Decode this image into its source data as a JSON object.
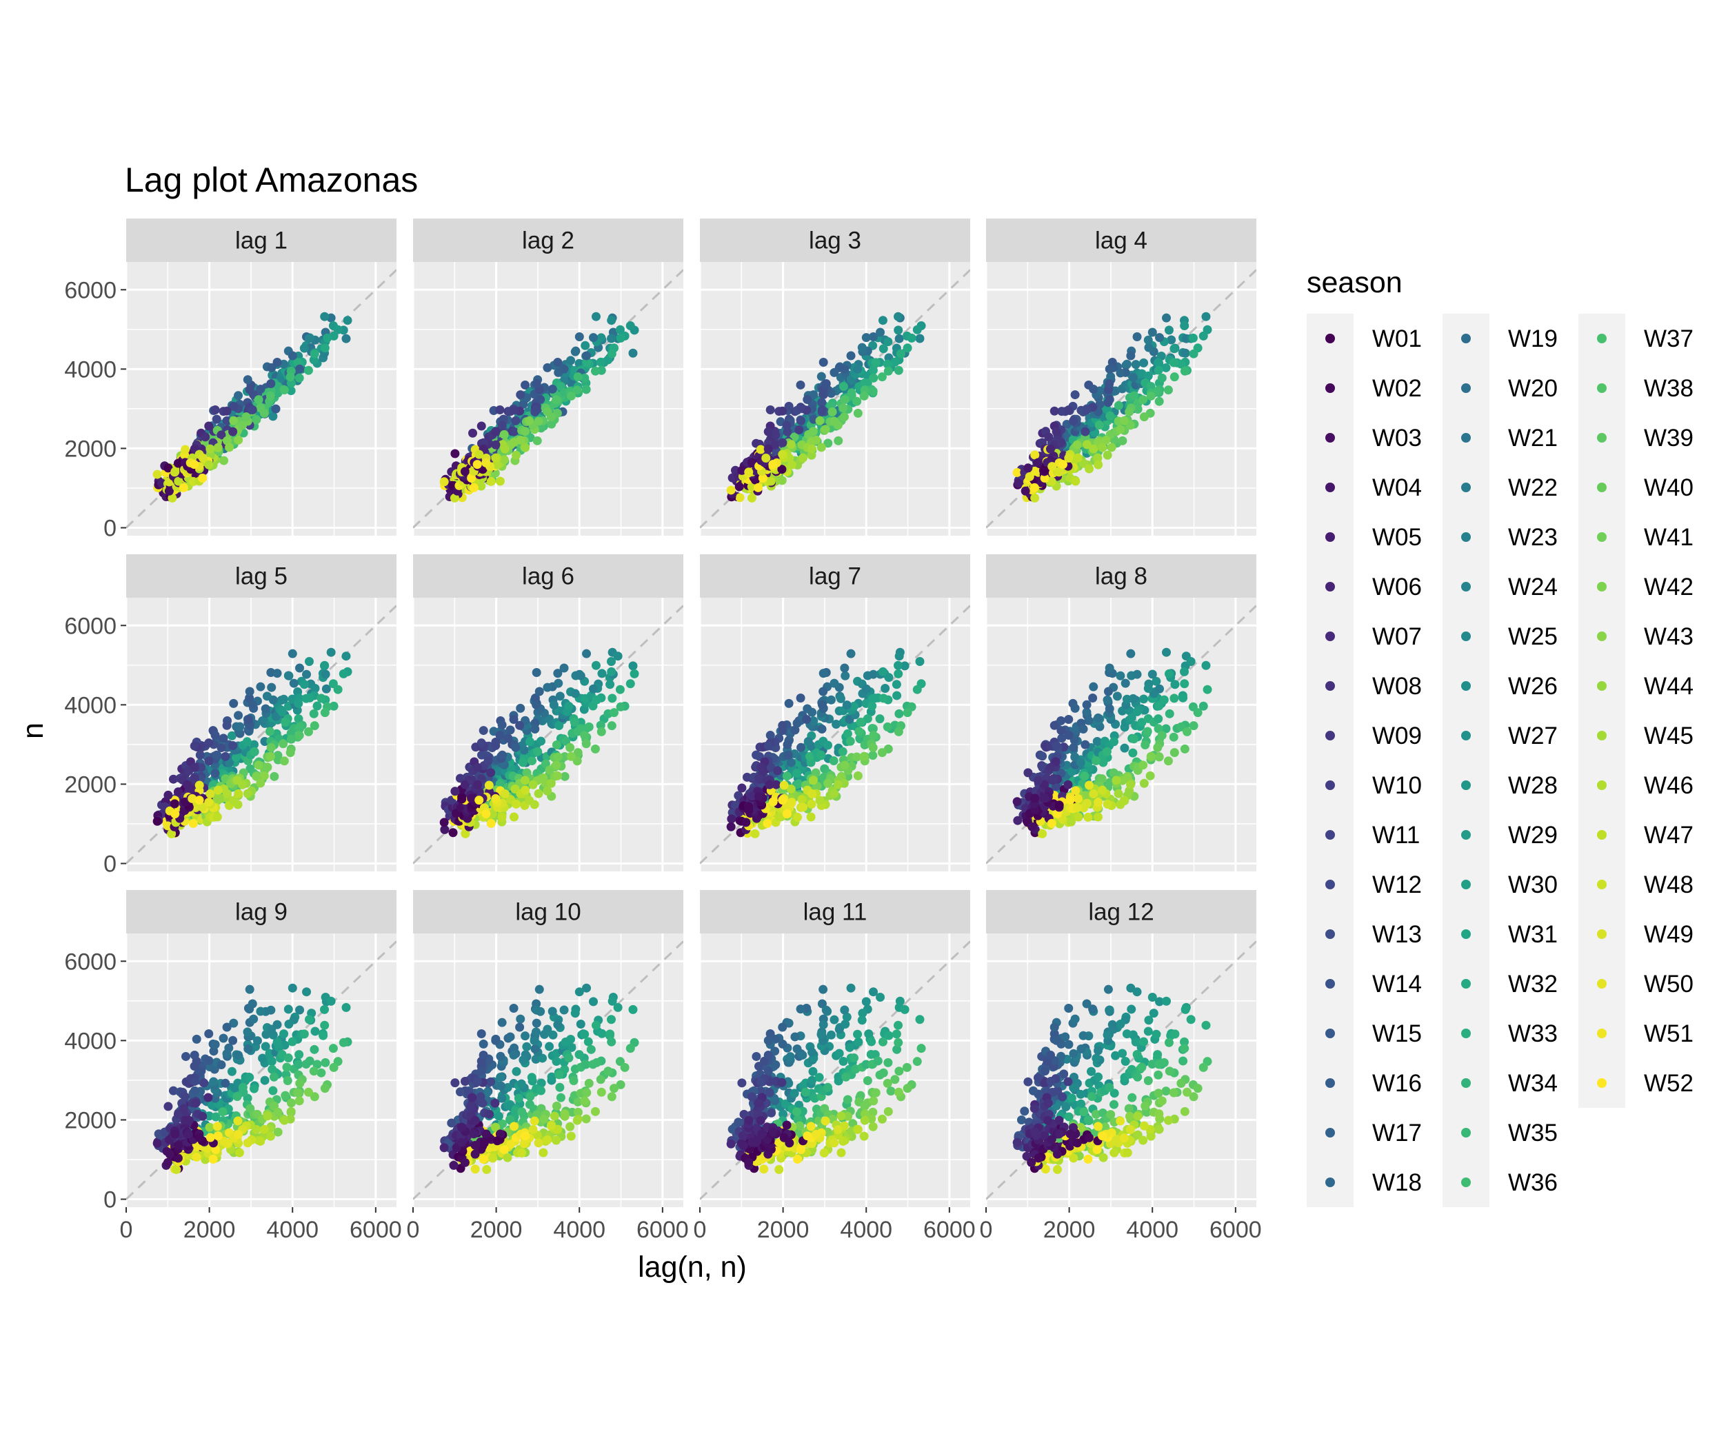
{
  "chart_data": {
    "type": "scatter",
    "title": "Lag plot Amazonas",
    "xlabel": "lag(n, n)",
    "ylabel": "n",
    "xlim": [
      0,
      6500
    ],
    "ylim": [
      -200,
      6700
    ],
    "x_ticks": [
      0,
      2000,
      4000,
      6000
    ],
    "y_ticks": [
      0,
      2000,
      4000,
      6000
    ],
    "x_tick_labels_col1": [
      "0",
      "2000",
      "4000",
      "6000"
    ],
    "x_tick_labels_mid": [
      "0",
      "2000",
      "4000",
      "6000"
    ],
    "x_tick_labels_last": [
      "0",
      "2000",
      "4000",
      "6000"
    ],
    "y_tick_labels": [
      "0",
      "2000",
      "4000",
      "6000"
    ],
    "reference_line": "y = x (dashed grey)",
    "grid": true,
    "legend_placement": "right",
    "legend": {
      "title": "season",
      "columns": 3,
      "entries": [
        "W01",
        "W02",
        "W03",
        "W04",
        "W05",
        "W06",
        "W07",
        "W08",
        "W09",
        "W10",
        "W11",
        "W12",
        "W13",
        "W14",
        "W15",
        "W16",
        "W17",
        "W18",
        "W19",
        "W20",
        "W21",
        "W22",
        "W23",
        "W24",
        "W25",
        "W26",
        "W27",
        "W28",
        "W29",
        "W30",
        "W31",
        "W32",
        "W33",
        "W34",
        "W35",
        "W36",
        "W37",
        "W38",
        "W39",
        "W40",
        "W41",
        "W42",
        "W43",
        "W44",
        "W45",
        "W46",
        "W47",
        "W48",
        "W49",
        "W50",
        "W51",
        "W52"
      ]
    },
    "panels": [
      {
        "label": "lag 1",
        "lag": 1
      },
      {
        "label": "lag 2",
        "lag": 2
      },
      {
        "label": "lag 3",
        "lag": 3
      },
      {
        "label": "lag 4",
        "lag": 4
      },
      {
        "label": "lag 5",
        "lag": 5
      },
      {
        "label": "lag 6",
        "lag": 6
      },
      {
        "label": "lag 7",
        "lag": 7
      },
      {
        "label": "lag 8",
        "lag": 8
      },
      {
        "label": "lag 9",
        "lag": 9
      },
      {
        "label": "lag 10",
        "lag": 10
      },
      {
        "label": "lag 11",
        "lag": 11
      },
      {
        "label": "lag 12",
        "lag": 12
      }
    ],
    "palette": [
      "#440154",
      "#482576",
      "#414487",
      "#35608d",
      "#2a788e",
      "#21908c",
      "#22a884",
      "#43bf71",
      "#7ad151",
      "#bddf26",
      "#fde725"
    ],
    "approx_series_summary": "Weekly counts roughly 300-6200; early-season weeks (purple) and late weeks (yellow) fall below the diagonal at higher lags, mid-season weeks (green/teal) reach the highest values around 4000-6200."
  },
  "colors": {
    "panel_bg": "#ebebeb",
    "strip_bg": "#d9d9d9",
    "grid": "#ffffff",
    "legend_key_bg": "#f2f2f2",
    "ref_line": "#bebebe"
  }
}
